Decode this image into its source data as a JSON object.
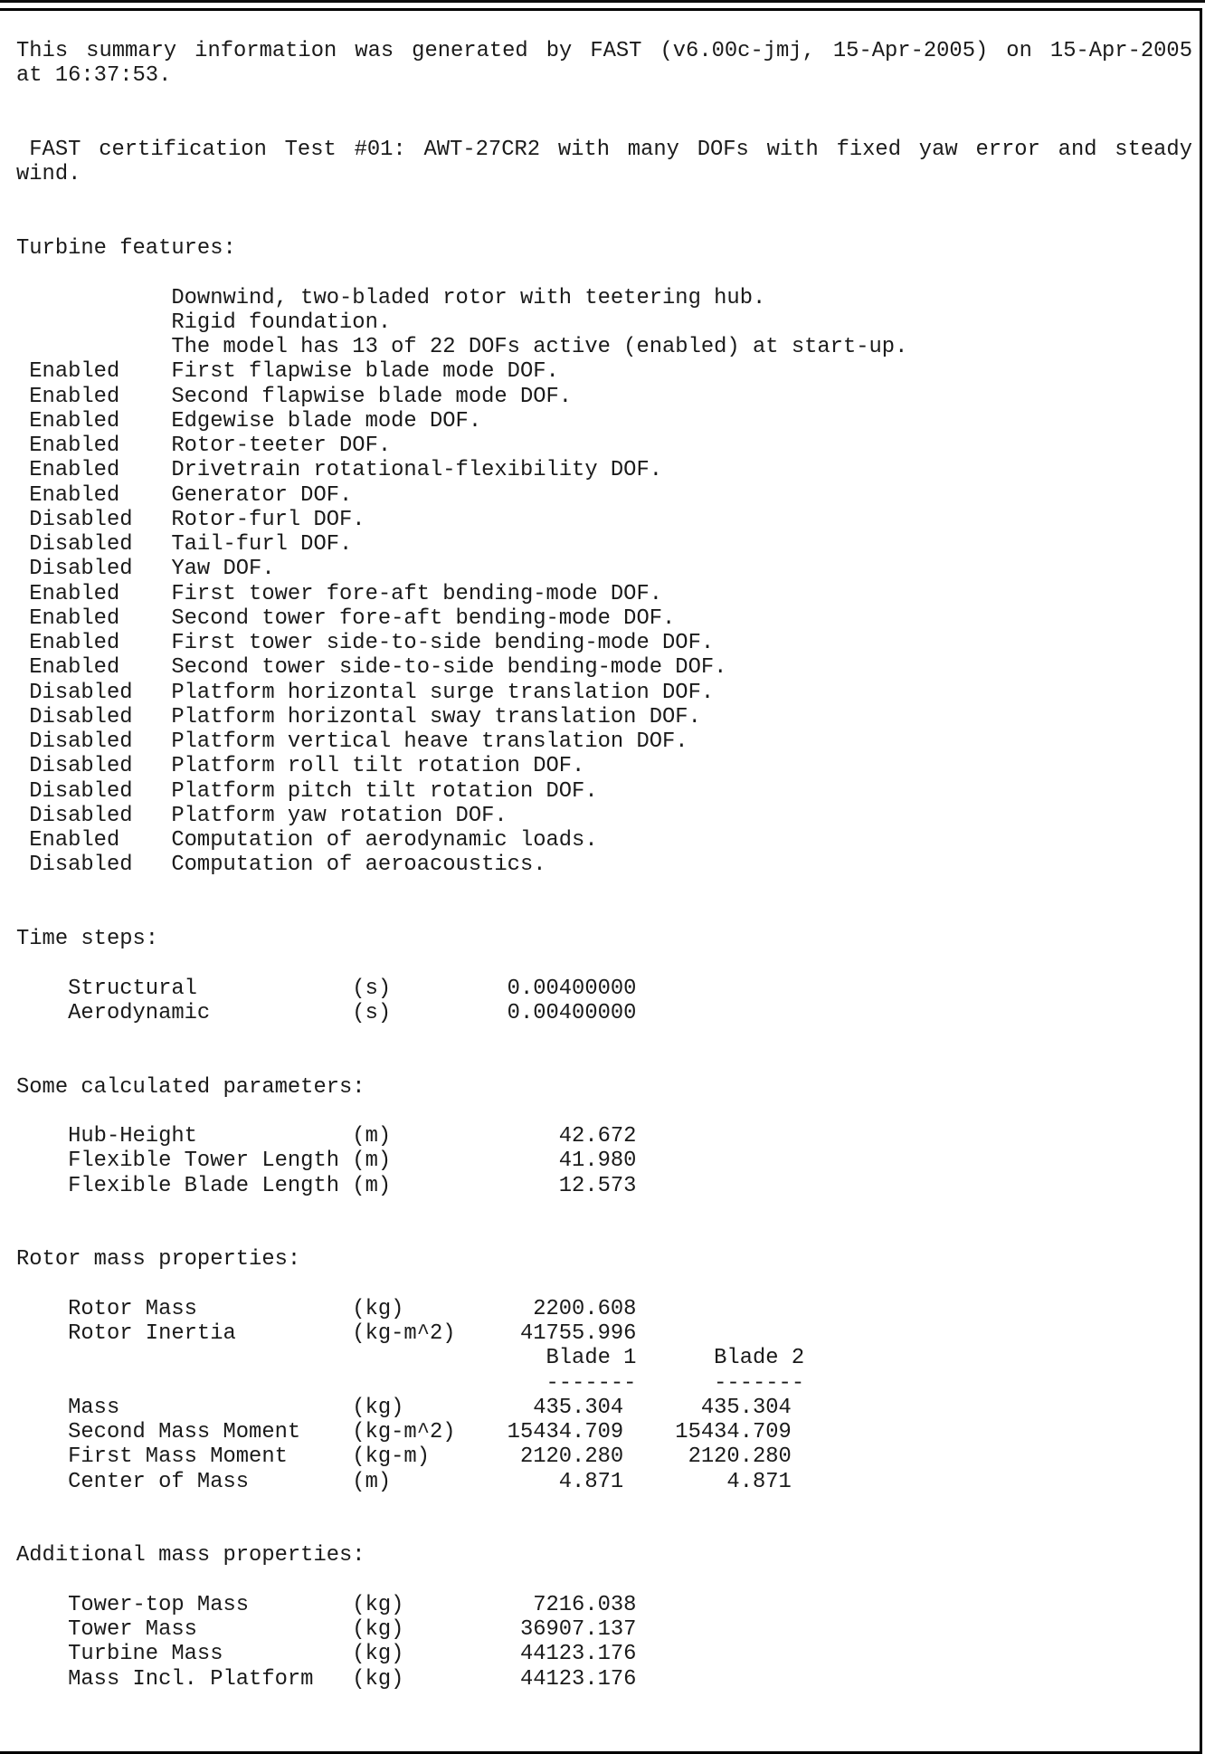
{
  "page": {
    "background": "#ffffff",
    "border_color": "#000000",
    "text_color": "#1a1a1a"
  },
  "document": {
    "description": "FAST turbine simulation summary (.fsm) text page",
    "lines": [
      {
        "kind": "paragraph-line",
        "justify": true,
        "text": "This summary information was generated by FAST (v6.00c-jmj, 15-Apr-2005) on 15-Apr-2005"
      },
      {
        "kind": "paragraph-line",
        "text": "at 16:37:53."
      },
      {
        "kind": "blank",
        "text": ""
      },
      {
        "kind": "blank",
        "text": ""
      },
      {
        "kind": "paragraph-line",
        "justify": true,
        "indent": 1,
        "text": "FAST certification Test #01: AWT-27CR2 with many DOFs with fixed yaw error and steady"
      },
      {
        "kind": "paragraph-line",
        "text": "wind."
      },
      {
        "kind": "blank",
        "text": ""
      },
      {
        "kind": "blank",
        "text": ""
      },
      {
        "kind": "section-header",
        "text": "Turbine features:"
      },
      {
        "kind": "blank",
        "text": ""
      },
      {
        "kind": "feature-line",
        "text": "            Downwind, two-bladed rotor with teetering hub."
      },
      {
        "kind": "feature-line",
        "text": "            Rigid foundation."
      },
      {
        "kind": "feature-line",
        "text": "            The model has 13 of 22 DOFs active (enabled) at start-up."
      },
      {
        "kind": "dof-line",
        "text": " Enabled    First flapwise blade mode DOF."
      },
      {
        "kind": "dof-line",
        "text": " Enabled    Second flapwise blade mode DOF."
      },
      {
        "kind": "dof-line",
        "text": " Enabled    Edgewise blade mode DOF."
      },
      {
        "kind": "dof-line",
        "text": " Enabled    Rotor-teeter DOF."
      },
      {
        "kind": "dof-line",
        "text": " Enabled    Drivetrain rotational-flexibility DOF."
      },
      {
        "kind": "dof-line",
        "text": " Enabled    Generator DOF."
      },
      {
        "kind": "dof-line",
        "text": " Disabled   Rotor-furl DOF."
      },
      {
        "kind": "dof-line",
        "text": " Disabled   Tail-furl DOF."
      },
      {
        "kind": "dof-line",
        "text": " Disabled   Yaw DOF."
      },
      {
        "kind": "dof-line",
        "text": " Enabled    First tower fore-aft bending-mode DOF."
      },
      {
        "kind": "dof-line",
        "text": " Enabled    Second tower fore-aft bending-mode DOF."
      },
      {
        "kind": "dof-line",
        "text": " Enabled    First tower side-to-side bending-mode DOF."
      },
      {
        "kind": "dof-line",
        "text": " Enabled    Second tower side-to-side bending-mode DOF."
      },
      {
        "kind": "dof-line",
        "text": " Disabled   Platform horizontal surge translation DOF."
      },
      {
        "kind": "dof-line",
        "text": " Disabled   Platform horizontal sway translation DOF."
      },
      {
        "kind": "dof-line",
        "text": " Disabled   Platform vertical heave translation DOF."
      },
      {
        "kind": "dof-line",
        "text": " Disabled   Platform roll tilt rotation DOF."
      },
      {
        "kind": "dof-line",
        "text": " Disabled   Platform pitch tilt rotation DOF."
      },
      {
        "kind": "dof-line",
        "text": " Disabled   Platform yaw rotation DOF."
      },
      {
        "kind": "dof-line",
        "text": " Enabled    Computation of aerodynamic loads."
      },
      {
        "kind": "dof-line",
        "text": " Disabled   Computation of aeroacoustics."
      },
      {
        "kind": "blank",
        "text": ""
      },
      {
        "kind": "blank",
        "text": ""
      },
      {
        "kind": "section-header",
        "text": "Time steps:"
      },
      {
        "kind": "blank",
        "text": ""
      },
      {
        "kind": "param-line",
        "text": "    Structural            (s)         0.00400000"
      },
      {
        "kind": "param-line",
        "text": "    Aerodynamic           (s)         0.00400000"
      },
      {
        "kind": "blank",
        "text": ""
      },
      {
        "kind": "blank",
        "text": ""
      },
      {
        "kind": "section-header",
        "text": "Some calculated parameters:"
      },
      {
        "kind": "blank",
        "text": ""
      },
      {
        "kind": "param-line",
        "text": "    Hub-Height            (m)             42.672"
      },
      {
        "kind": "param-line",
        "text": "    Flexible Tower Length (m)             41.980"
      },
      {
        "kind": "param-line",
        "text": "    Flexible Blade Length (m)             12.573"
      },
      {
        "kind": "blank",
        "text": ""
      },
      {
        "kind": "blank",
        "text": ""
      },
      {
        "kind": "section-header",
        "text": "Rotor mass properties:"
      },
      {
        "kind": "blank",
        "text": ""
      },
      {
        "kind": "param-line",
        "text": "    Rotor Mass            (kg)          2200.608"
      },
      {
        "kind": "param-line",
        "text": "    Rotor Inertia         (kg-m^2)     41755.996"
      },
      {
        "kind": "table-header-line",
        "text": "                                         Blade 1      Blade 2"
      },
      {
        "kind": "table-underline-line",
        "text": "                                         -------      -------"
      },
      {
        "kind": "param-line",
        "text": "    Mass                  (kg)          435.304      435.304"
      },
      {
        "kind": "param-line",
        "text": "    Second Mass Moment    (kg-m^2)    15434.709    15434.709"
      },
      {
        "kind": "param-line",
        "text": "    First Mass Moment     (kg-m)       2120.280     2120.280"
      },
      {
        "kind": "param-line",
        "text": "    Center of Mass        (m)             4.871        4.871"
      },
      {
        "kind": "blank",
        "text": ""
      },
      {
        "kind": "blank",
        "text": ""
      },
      {
        "kind": "section-header",
        "text": "Additional mass properties:"
      },
      {
        "kind": "blank",
        "text": ""
      },
      {
        "kind": "param-line",
        "text": "    Tower-top Mass        (kg)          7216.038"
      },
      {
        "kind": "param-line",
        "text": "    Tower Mass            (kg)         36907.137"
      },
      {
        "kind": "param-line",
        "text": "    Turbine Mass          (kg)         44123.176"
      },
      {
        "kind": "param-line",
        "text": "    Mass Incl. Platform   (kg)         44123.176"
      }
    ]
  }
}
